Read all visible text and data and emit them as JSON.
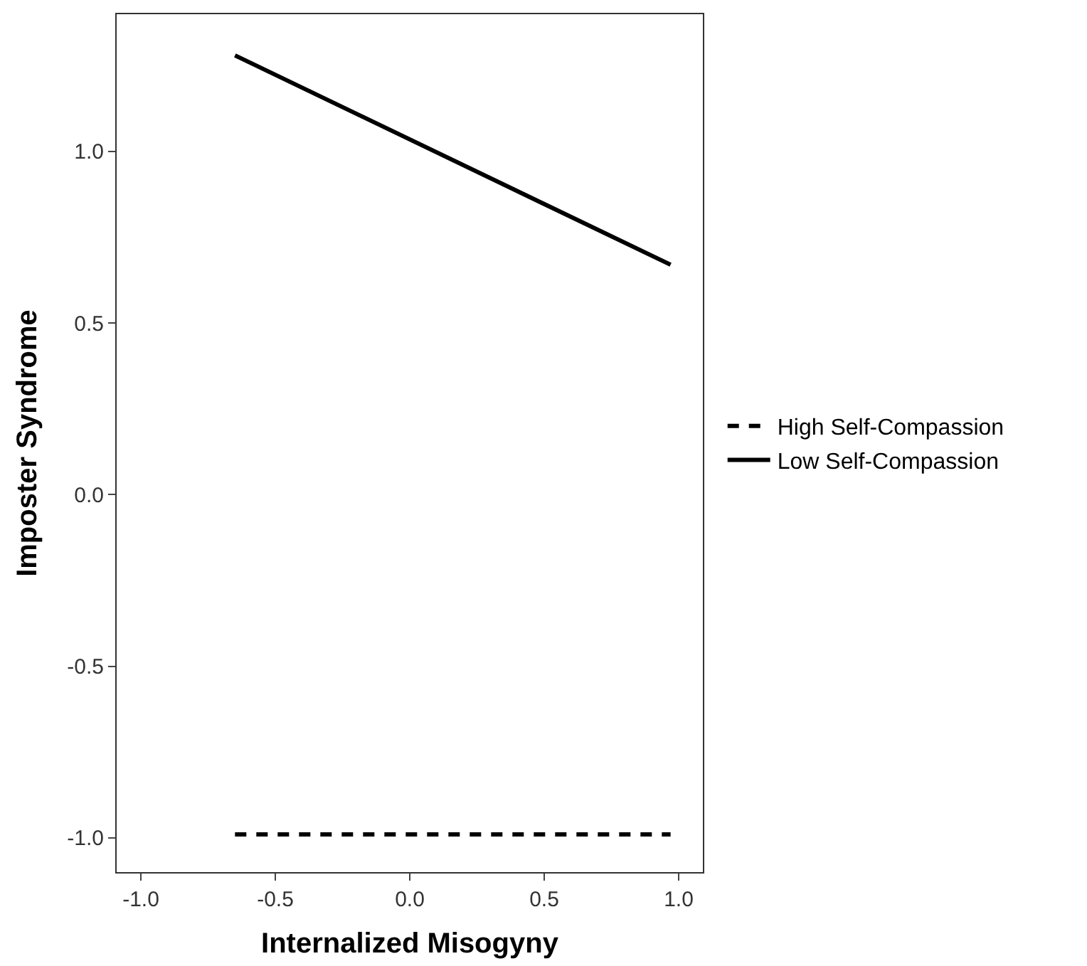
{
  "chart_data": {
    "type": "line",
    "xlabel": "Internalized Misogyny",
    "ylabel": "Imposter Syndrome",
    "x": [
      -0.65,
      0.97
    ],
    "series": [
      {
        "name": "High Self-Compassion",
        "color": "#000000",
        "values": [
          -0.99,
          -0.99
        ],
        "line_style": "dashed"
      },
      {
        "name": "Low Self-Compassion",
        "color": "#000000",
        "values": [
          1.28,
          0.67
        ],
        "line_style": "solid"
      }
    ],
    "xlim": [
      -1.09,
      1.09
    ],
    "xticks": [
      {
        "value": -1,
        "label": "-1.0"
      },
      -0.5,
      {
        "value": 0,
        "label": "0.0"
      },
      0.5,
      {
        "value": 1,
        "label": "1.0"
      }
    ],
    "ylim": [
      -1.1,
      1.4
    ],
    "yticks": [
      {
        "value": -1,
        "label": "-1.0"
      },
      -0.5,
      {
        "value": 0,
        "label": "0.0"
      },
      0.5,
      {
        "value": 1,
        "label": "1.0"
      }
    ],
    "legend": "right",
    "marker": "none"
  }
}
